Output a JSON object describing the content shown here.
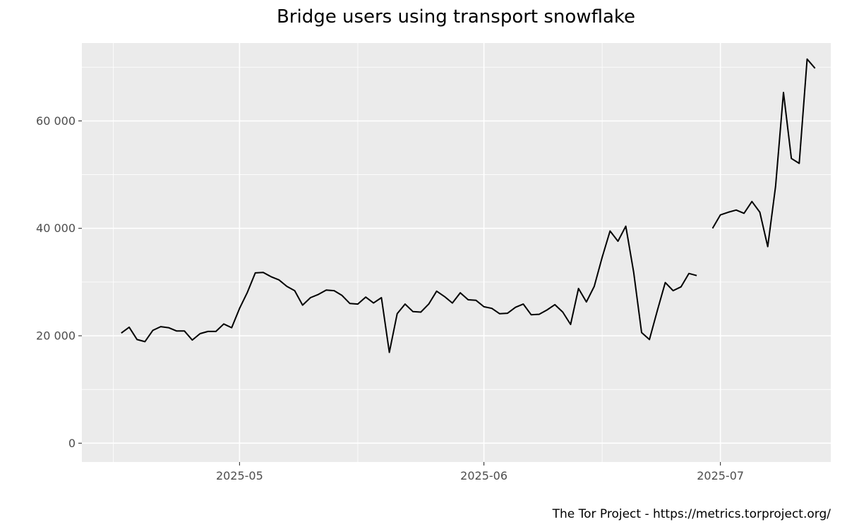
{
  "chart_data": {
    "type": "line",
    "title": "Bridge users using transport snowflake",
    "caption": "The Tor Project - https://metrics.torproject.org/",
    "xlabel": "",
    "ylabel": "",
    "x_range": [
      "2025-04-11",
      "2025-07-15"
    ],
    "ylim": [
      -3500,
      74500
    ],
    "y_ticks": [
      {
        "value": 0,
        "label": "0"
      },
      {
        "value": 20000,
        "label": "20 000"
      },
      {
        "value": 40000,
        "label": "40 000"
      },
      {
        "value": 60000,
        "label": "60 000"
      }
    ],
    "y_minor_ticks": [
      10000,
      30000,
      50000,
      70000
    ],
    "x_ticks": [
      {
        "date": "2025-05-01",
        "label": "2025-05"
      },
      {
        "date": "2025-06-01",
        "label": "2025-06"
      },
      {
        "date": "2025-07-01",
        "label": "2025-07"
      }
    ],
    "x_minor_ticks": [
      "2025-04-15",
      "2025-05-16",
      "2025-06-16",
      "2025-07-16"
    ],
    "grid": true,
    "legend": "none",
    "colors": {
      "panel": "#ebebeb",
      "grid": "#ffffff",
      "line": "#000000",
      "tick_text": "#4d4d4d"
    },
    "series": [
      {
        "segments": [
          [
            [
              "2025-04-16",
              20500
            ],
            [
              "2025-04-17",
              21600
            ],
            [
              "2025-04-18",
              19300
            ],
            [
              "2025-04-19",
              18900
            ],
            [
              "2025-04-20",
              21000
            ],
            [
              "2025-04-21",
              21700
            ],
            [
              "2025-04-22",
              21500
            ],
            [
              "2025-04-23",
              20900
            ],
            [
              "2025-04-24",
              20900
            ],
            [
              "2025-04-25",
              19200
            ],
            [
              "2025-04-26",
              20400
            ],
            [
              "2025-04-27",
              20800
            ],
            [
              "2025-04-28",
              20800
            ],
            [
              "2025-04-29",
              22200
            ],
            [
              "2025-04-30",
              21500
            ],
            [
              "2025-05-01",
              25100
            ],
            [
              "2025-05-02",
              28100
            ],
            [
              "2025-05-03",
              31700
            ],
            [
              "2025-05-04",
              31800
            ],
            [
              "2025-05-05",
              31000
            ],
            [
              "2025-05-06",
              30400
            ],
            [
              "2025-05-07",
              29200
            ],
            [
              "2025-05-08",
              28400
            ],
            [
              "2025-05-09",
              25700
            ],
            [
              "2025-05-10",
              27100
            ],
            [
              "2025-05-11",
              27700
            ],
            [
              "2025-05-12",
              28500
            ],
            [
              "2025-05-13",
              28400
            ],
            [
              "2025-05-14",
              27500
            ],
            [
              "2025-05-15",
              26000
            ],
            [
              "2025-05-16",
              25900
            ],
            [
              "2025-05-17",
              27200
            ],
            [
              "2025-05-18",
              26100
            ],
            [
              "2025-05-19",
              27100
            ],
            [
              "2025-05-20",
              16900
            ],
            [
              "2025-05-21",
              24100
            ],
            [
              "2025-05-22",
              25900
            ],
            [
              "2025-05-23",
              24500
            ],
            [
              "2025-05-24",
              24400
            ],
            [
              "2025-05-25",
              25900
            ],
            [
              "2025-05-26",
              28300
            ],
            [
              "2025-05-27",
              27300
            ],
            [
              "2025-05-28",
              26100
            ],
            [
              "2025-05-29",
              28000
            ],
            [
              "2025-05-30",
              26700
            ],
            [
              "2025-05-31",
              26600
            ],
            [
              "2025-06-01",
              25400
            ],
            [
              "2025-06-02",
              25100
            ],
            [
              "2025-06-03",
              24100
            ],
            [
              "2025-06-04",
              24200
            ],
            [
              "2025-06-05",
              25300
            ],
            [
              "2025-06-06",
              25900
            ],
            [
              "2025-06-07",
              23900
            ],
            [
              "2025-06-08",
              24000
            ],
            [
              "2025-06-09",
              24800
            ],
            [
              "2025-06-10",
              25800
            ],
            [
              "2025-06-11",
              24400
            ],
            [
              "2025-06-12",
              22100
            ],
            [
              "2025-06-13",
              28800
            ],
            [
              "2025-06-14",
              26300
            ],
            [
              "2025-06-15",
              29200
            ],
            [
              "2025-06-16",
              34600
            ],
            [
              "2025-06-17",
              39500
            ],
            [
              "2025-06-18",
              37600
            ],
            [
              "2025-06-19",
              40400
            ],
            [
              "2025-06-20",
              31800
            ],
            [
              "2025-06-21",
              20600
            ],
            [
              "2025-06-22",
              19300
            ],
            [
              "2025-06-23",
              24700
            ],
            [
              "2025-06-24",
              29900
            ],
            [
              "2025-06-25",
              28400
            ],
            [
              "2025-06-26",
              29100
            ],
            [
              "2025-06-27",
              31600
            ],
            [
              "2025-06-28",
              31200
            ]
          ],
          [
            [
              "2025-06-30",
              40000
            ],
            [
              "2025-07-01",
              42500
            ],
            [
              "2025-07-02",
              43000
            ],
            [
              "2025-07-03",
              43400
            ],
            [
              "2025-07-04",
              42800
            ],
            [
              "2025-07-05",
              45000
            ],
            [
              "2025-07-06",
              43000
            ],
            [
              "2025-07-07",
              36600
            ],
            [
              "2025-07-08",
              47800
            ],
            [
              "2025-07-09",
              65300
            ],
            [
              "2025-07-10",
              53000
            ],
            [
              "2025-07-11",
              52100
            ],
            [
              "2025-07-12",
              71500
            ],
            [
              "2025-07-13",
              69800
            ]
          ]
        ]
      }
    ]
  }
}
